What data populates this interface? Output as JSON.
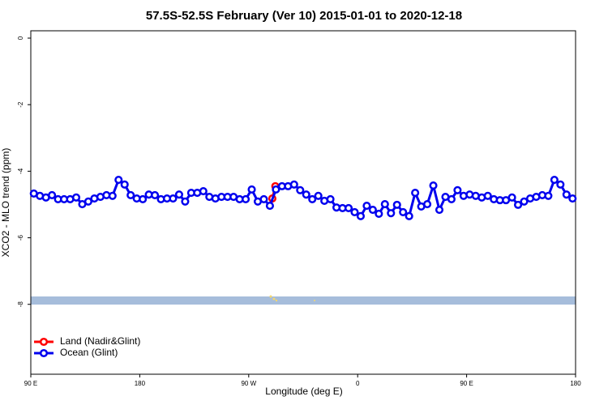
{
  "chart_data": {
    "type": "line",
    "title": "57.5S-52.5S February (Ver 10)   2015-01-01 to 2020-12-18",
    "xlabel": "Longitude (deg E)",
    "ylabel": "XCO2 - MLO trend (ppm)",
    "xlim": [
      90,
      540
    ],
    "ylim": [
      -10.1,
      0.22
    ],
    "xticks": [
      {
        "value": 90,
        "label": "90 E"
      },
      180,
      {
        "value": 270,
        "label": "90 W"
      },
      {
        "value": 360,
        "label": "0"
      },
      {
        "value": 450,
        "label": "90 E"
      },
      {
        "value": 540,
        "label": "180"
      }
    ],
    "yticks": [
      0,
      -2,
      -4,
      -6,
      -8
    ],
    "legend": "bottom-left",
    "series": [
      {
        "name": "Land (Nadir&Glint)",
        "color": "#ff0000",
        "x": [
          289.5,
          292
        ],
        "values": [
          -4.82,
          -4.45
        ]
      },
      {
        "name": "Ocean (Glint)",
        "color": "#0000ee",
        "x": [
          92.5,
          97.5,
          102.5,
          107.5,
          112.5,
          117.5,
          122.5,
          127.5,
          132.5,
          137.5,
          142.5,
          147.5,
          152.5,
          157.5,
          162.5,
          167.5,
          172.5,
          177.5,
          182.5,
          187.5,
          192.5,
          197.5,
          202.5,
          207.5,
          212.5,
          217.5,
          222.5,
          227.5,
          232.5,
          237.5,
          242.5,
          247.5,
          252.5,
          257.5,
          262.5,
          267.5,
          272.5,
          277.5,
          282.5,
          287.5,
          292.5,
          297.5,
          302.5,
          307.5,
          312.5,
          317.5,
          322.5,
          327.5,
          332.5,
          337.5,
          342.5,
          347.5,
          352.5,
          357.5,
          362.5,
          367.5,
          372.5,
          377.5,
          382.5,
          387.5,
          392.5,
          397.5,
          402.5,
          407.5,
          412.5,
          417.5,
          422.5,
          427.5,
          432.5,
          437.5,
          442.5,
          447.5,
          452.5,
          457.5,
          462.5,
          467.5,
          472.5,
          477.5,
          482.5,
          487.5,
          492.5,
          497.5,
          502.5,
          507.5,
          512.5,
          517.5,
          522.5,
          527.5,
          532.5,
          537.5
        ],
        "values": [
          -4.67,
          -4.74,
          -4.79,
          -4.72,
          -4.84,
          -4.84,
          -4.84,
          -4.79,
          -4.99,
          -4.91,
          -4.82,
          -4.77,
          -4.72,
          -4.74,
          -4.26,
          -4.4,
          -4.72,
          -4.82,
          -4.84,
          -4.7,
          -4.72,
          -4.84,
          -4.82,
          -4.82,
          -4.7,
          -4.91,
          -4.65,
          -4.65,
          -4.6,
          -4.77,
          -4.82,
          -4.77,
          -4.77,
          -4.77,
          -4.84,
          -4.84,
          -4.55,
          -4.91,
          -4.84,
          -5.04,
          -4.55,
          -4.45,
          -4.45,
          -4.4,
          -4.57,
          -4.7,
          -4.84,
          -4.74,
          -4.89,
          -4.84,
          -5.09,
          -5.11,
          -5.11,
          -5.23,
          -5.35,
          -5.04,
          -5.16,
          -5.28,
          -4.99,
          -5.26,
          -5.01,
          -5.23,
          -5.35,
          -4.65,
          -5.06,
          -4.99,
          -4.43,
          -5.16,
          -4.77,
          -4.84,
          -4.57,
          -4.74,
          -4.7,
          -4.74,
          -4.79,
          -4.74,
          -4.84,
          -4.87,
          -4.87,
          -4.79,
          -5.01,
          -4.91,
          -4.82,
          -4.77,
          -4.72,
          -4.74,
          -4.26,
          -4.4,
          -4.7,
          -4.82
        ]
      }
    ]
  }
}
